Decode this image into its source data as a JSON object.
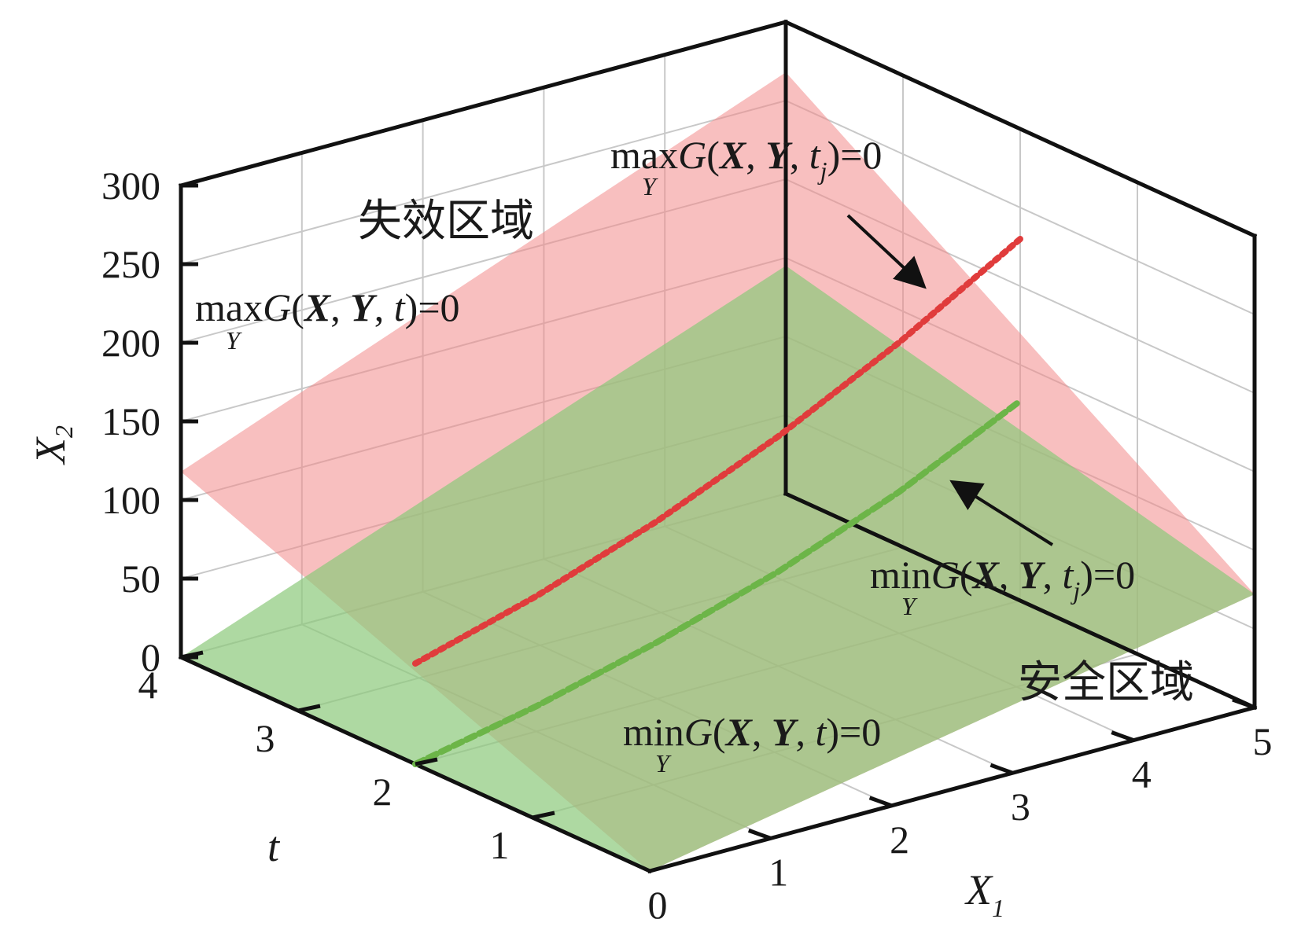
{
  "chart_data": {
    "type": "surface3d",
    "axes": {
      "x": {
        "label": "X",
        "label_sub": "1",
        "ticks": [
          "0",
          "1",
          "2",
          "3",
          "4",
          "5"
        ],
        "range": [
          0,
          5
        ]
      },
      "y": {
        "label": "t",
        "ticks": [
          "1",
          "2",
          "3",
          "4"
        ],
        "range": [
          0,
          4
        ]
      },
      "z": {
        "label": "X",
        "label_sub": "2",
        "ticks": [
          "0",
          "50",
          "100",
          "150",
          "200",
          "250",
          "300"
        ],
        "range": [
          0,
          300
        ]
      }
    },
    "grid": true,
    "surfaces": [
      {
        "id": "max_surface",
        "color": "#f28b8b",
        "opacity": 0.55,
        "corners": [
          {
            "x1": 0,
            "t": 0,
            "x2": 0
          },
          {
            "x1": 5,
            "t": 0,
            "x2": 72
          },
          {
            "x1": 0,
            "t": 4,
            "x2": 118
          },
          {
            "x1": 5,
            "t": 4,
            "x2": 268
          }
        ]
      },
      {
        "id": "min_surface",
        "color": "#8cc97a",
        "opacity": 0.7,
        "corners": [
          {
            "x1": 0,
            "t": 0,
            "x2": 0
          },
          {
            "x1": 5,
            "t": 0,
            "x2": 72
          },
          {
            "x1": 0,
            "t": 4,
            "x2": 0
          },
          {
            "x1": 5,
            "t": 4,
            "x2": 145
          }
        ]
      }
    ],
    "curves": [
      {
        "id": "max_curve_tj",
        "color": "#e03c3c",
        "style": "dotted",
        "points": [
          [
            0,
            2,
            64
          ],
          [
            1,
            2,
            86
          ],
          [
            2,
            2,
            113
          ],
          [
            3,
            2,
            146
          ],
          [
            4,
            2,
            185
          ],
          [
            5,
            2,
            230
          ]
        ]
      },
      {
        "id": "min_curve_tj",
        "color": "#6cb548",
        "style": "dashed",
        "points": [
          [
            0,
            2,
            0
          ],
          [
            1,
            2,
            16
          ],
          [
            2,
            2,
            36
          ],
          [
            3,
            2,
            60
          ],
          [
            4,
            2,
            90
          ],
          [
            5,
            2,
            127
          ]
        ]
      }
    ],
    "regions": {
      "failure": "失效区域",
      "safe": "安全区域"
    },
    "annotations": {
      "max_t": {
        "op": "max",
        "sub": "Y",
        "G": "G",
        "X": "X",
        "Y": "Y",
        "t": "t",
        "t_sub": "",
        "tail": ")=0"
      },
      "max_tj": {
        "op": "max",
        "sub": "Y",
        "G": "G",
        "X": "X",
        "Y": "Y",
        "t": "t",
        "t_sub": "j",
        "tail": ")=0"
      },
      "min_t": {
        "op": "min",
        "sub": "Y",
        "G": "G",
        "X": "X",
        "Y": "Y",
        "t": "t",
        "t_sub": "",
        "tail": ")=0"
      },
      "min_tj": {
        "op": "min",
        "sub": "Y",
        "G": "G",
        "X": "X",
        "Y": "Y",
        "t": "t",
        "t_sub": "j",
        "tail": ")=0"
      }
    }
  }
}
